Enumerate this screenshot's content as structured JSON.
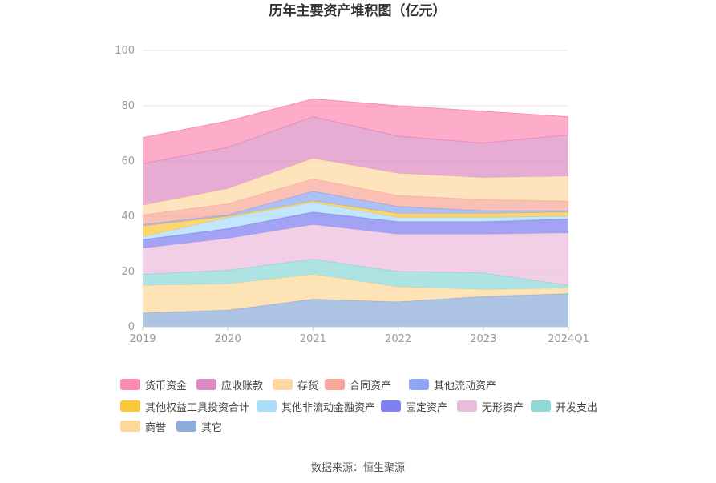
{
  "chart_data": {
    "type": "area",
    "stacked": true,
    "title": "历年主要资产堆积图（亿元）",
    "categories": [
      "2019",
      "2020",
      "2021",
      "2022",
      "2023",
      "2024Q1"
    ],
    "ylim": [
      0,
      100
    ],
    "yticks": [
      0,
      20,
      40,
      60,
      80,
      100
    ],
    "grid": true,
    "legend_position": "bottom",
    "series": [
      {
        "name": "其它",
        "color": "#8eacda",
        "values": [
          5,
          6,
          10,
          9,
          11,
          12
        ]
      },
      {
        "name": "商誉",
        "color": "#fcd89a",
        "values": [
          10,
          9.5,
          9,
          5.5,
          2.5,
          2
        ]
      },
      {
        "name": "开发支出",
        "color": "#8ed8d8",
        "values": [
          4,
          5,
          5.5,
          5.5,
          6,
          1
        ]
      },
      {
        "name": "无形资产",
        "color": "#ebbcdc",
        "values": [
          9.5,
          11.5,
          12.5,
          13.5,
          14,
          19
        ]
      },
      {
        "name": "固定资产",
        "color": "#8080f2",
        "values": [
          3,
          3.5,
          4.5,
          4.5,
          4.5,
          5
        ]
      },
      {
        "name": "其他非流动金融资产",
        "color": "#aaddfa",
        "values": [
          1,
          4,
          3.5,
          1.5,
          1.5,
          1
        ]
      },
      {
        "name": "其他权益工具投资合计",
        "color": "#fcc63c",
        "values": [
          4,
          0.5,
          0.5,
          1.5,
          1.5,
          1.5
        ]
      },
      {
        "name": "其他流动资产",
        "color": "#8aa8f4",
        "values": [
          0.5,
          0.5,
          3.5,
          2.5,
          1,
          0.5
        ]
      },
      {
        "name": "合同资产",
        "color": "#f8a898",
        "values": [
          3.5,
          4,
          4.5,
          4,
          4,
          3.5
        ]
      },
      {
        "name": "存货",
        "color": "#fddaa2",
        "values": [
          3.5,
          5.5,
          7.5,
          8,
          8,
          9
        ]
      },
      {
        "name": "应收账款",
        "color": "#dc8cc4",
        "values": [
          15,
          15,
          15,
          13.5,
          12.5,
          15
        ]
      },
      {
        "name": "货币资金",
        "color": "#fc8cb4",
        "values": [
          9.5,
          9.5,
          6.5,
          11,
          11.5,
          6.5
        ]
      }
    ]
  },
  "legend_order": [
    "货币资金",
    "应收账款",
    "存货",
    "合同资产",
    "其他流动资产",
    "其他权益工具投资合计",
    "其他非流动金融资产",
    "固定资产",
    "无形资产",
    "开发支出",
    "商誉",
    "其它"
  ],
  "source_text": "数据来源：恒生聚源"
}
